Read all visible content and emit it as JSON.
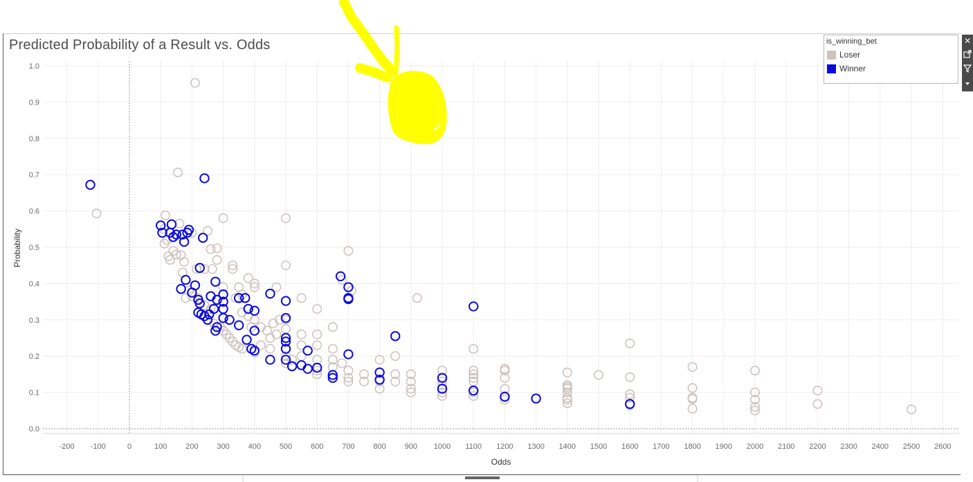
{
  "title": "Predicted Probability of a Result vs. Odds",
  "legend": {
    "title": "is_winning_bet",
    "items": [
      {
        "label": "Loser",
        "color": "#cdc3be"
      },
      {
        "label": "Winner",
        "color": "#0b0bdc"
      }
    ]
  },
  "toolbar": {
    "icons": [
      "close-icon",
      "popout-icon",
      "filter-icon",
      "dropdown-icon"
    ]
  },
  "annotation": {
    "color": "#ffff00",
    "description": "yellow hand-drawn scribble"
  },
  "chart_data": {
    "type": "scatter",
    "xlabel": "Odds",
    "ylabel": "Probability",
    "xlim": [
      -200,
      2600
    ],
    "ylim": [
      0.0,
      1.0
    ],
    "xticks": [
      -200,
      -100,
      0,
      100,
      200,
      300,
      400,
      500,
      600,
      700,
      800,
      900,
      1000,
      1100,
      1200,
      1300,
      1400,
      1500,
      1600,
      1700,
      1800,
      1900,
      2000,
      2100,
      2200,
      2300,
      2400,
      2500,
      2600
    ],
    "yticks": [
      0.0,
      0.1,
      0.2,
      0.3,
      0.4,
      0.5,
      0.6,
      0.7,
      0.8,
      0.9,
      1.0
    ],
    "grid": true,
    "legend_position": "top-right",
    "series": [
      {
        "name": "Loser",
        "color": "#cdc3be",
        "points": [
          [
            -105,
            0.593
          ],
          [
            210,
            0.953
          ],
          [
            155,
            0.706
          ],
          [
            115,
            0.588
          ],
          [
            110,
            0.55
          ],
          [
            120,
            0.52
          ],
          [
            112,
            0.51
          ],
          [
            125,
            0.475
          ],
          [
            130,
            0.465
          ],
          [
            140,
            0.49
          ],
          [
            150,
            0.48
          ],
          [
            165,
            0.478
          ],
          [
            160,
            0.565
          ],
          [
            175,
            0.46
          ],
          [
            200,
            0.54
          ],
          [
            250,
            0.545
          ],
          [
            300,
            0.58
          ],
          [
            260,
            0.495
          ],
          [
            280,
            0.497
          ],
          [
            265,
            0.44
          ],
          [
            280,
            0.465
          ],
          [
            240,
            0.44
          ],
          [
            215,
            0.44
          ],
          [
            170,
            0.43
          ],
          [
            180,
            0.41
          ],
          [
            190,
            0.38
          ],
          [
            200,
            0.365
          ],
          [
            180,
            0.36
          ],
          [
            220,
            0.36
          ],
          [
            240,
            0.34
          ],
          [
            260,
            0.33
          ],
          [
            250,
            0.3
          ],
          [
            270,
            0.29
          ],
          [
            290,
            0.28
          ],
          [
            300,
            0.27
          ],
          [
            310,
            0.26
          ],
          [
            320,
            0.25
          ],
          [
            330,
            0.24
          ],
          [
            340,
            0.23
          ],
          [
            350,
            0.225
          ],
          [
            360,
            0.22
          ],
          [
            300,
            0.39
          ],
          [
            330,
            0.44
          ],
          [
            330,
            0.45
          ],
          [
            350,
            0.39
          ],
          [
            360,
            0.37
          ],
          [
            380,
            0.415
          ],
          [
            400,
            0.39
          ],
          [
            400,
            0.4
          ],
          [
            340,
            0.36
          ],
          [
            360,
            0.32
          ],
          [
            380,
            0.31
          ],
          [
            400,
            0.3
          ],
          [
            390,
            0.28
          ],
          [
            420,
            0.28
          ],
          [
            440,
            0.27
          ],
          [
            460,
            0.29
          ],
          [
            450,
            0.25
          ],
          [
            470,
            0.26
          ],
          [
            480,
            0.3
          ],
          [
            500,
            0.3
          ],
          [
            470,
            0.39
          ],
          [
            500,
            0.45
          ],
          [
            500,
            0.58
          ],
          [
            550,
            0.36
          ],
          [
            600,
            0.33
          ],
          [
            650,
            0.28
          ],
          [
            700,
            0.49
          ],
          [
            680,
            0.41
          ],
          [
            710,
            0.38
          ],
          [
            500,
            0.275
          ],
          [
            500,
            0.2
          ],
          [
            450,
            0.22
          ],
          [
            420,
            0.23
          ],
          [
            400,
            0.21
          ],
          [
            500,
            0.18
          ],
          [
            520,
            0.19
          ],
          [
            550,
            0.2
          ],
          [
            550,
            0.23
          ],
          [
            550,
            0.26
          ],
          [
            600,
            0.26
          ],
          [
            600,
            0.23
          ],
          [
            600,
            0.19
          ],
          [
            600,
            0.16
          ],
          [
            600,
            0.15
          ],
          [
            650,
            0.22
          ],
          [
            650,
            0.19
          ],
          [
            650,
            0.17
          ],
          [
            680,
            0.18
          ],
          [
            700,
            0.16
          ],
          [
            700,
            0.14
          ],
          [
            700,
            0.13
          ],
          [
            750,
            0.15
          ],
          [
            750,
            0.13
          ],
          [
            800,
            0.19
          ],
          [
            800,
            0.11
          ],
          [
            800,
            0.13
          ],
          [
            850,
            0.2
          ],
          [
            850,
            0.15
          ],
          [
            850,
            0.13
          ],
          [
            900,
            0.15
          ],
          [
            900,
            0.13
          ],
          [
            900,
            0.11
          ],
          [
            900,
            0.1
          ],
          [
            920,
            0.36
          ],
          [
            1000,
            0.16
          ],
          [
            1000,
            0.13
          ],
          [
            1000,
            0.12
          ],
          [
            1000,
            0.1
          ],
          [
            1000,
            0.09
          ],
          [
            1100,
            0.22
          ],
          [
            1100,
            0.16
          ],
          [
            1100,
            0.15
          ],
          [
            1100,
            0.14
          ],
          [
            1100,
            0.13
          ],
          [
            1100,
            0.1
          ],
          [
            1100,
            0.09
          ],
          [
            1200,
            0.165
          ],
          [
            1200,
            0.16
          ],
          [
            1200,
            0.14
          ],
          [
            1200,
            0.11
          ],
          [
            1200,
            0.09
          ],
          [
            1200,
            0.08
          ],
          [
            1400,
            0.155
          ],
          [
            1400,
            0.12
          ],
          [
            1400,
            0.115
          ],
          [
            1400,
            0.11
          ],
          [
            1400,
            0.1
          ],
          [
            1400,
            0.085
          ],
          [
            1400,
            0.08
          ],
          [
            1400,
            0.07
          ],
          [
            1500,
            0.148
          ],
          [
            1600,
            0.235
          ],
          [
            1600,
            0.142
          ],
          [
            1600,
            0.095
          ],
          [
            1600,
            0.085
          ],
          [
            1600,
            0.065
          ],
          [
            1800,
            0.17
          ],
          [
            1800,
            0.112
          ],
          [
            1800,
            0.085
          ],
          [
            1800,
            0.082
          ],
          [
            1800,
            0.055
          ],
          [
            2000,
            0.16
          ],
          [
            2000,
            0.1
          ],
          [
            2000,
            0.08
          ],
          [
            2000,
            0.06
          ],
          [
            2000,
            0.05
          ],
          [
            2200,
            0.105
          ],
          [
            2200,
            0.068
          ],
          [
            2500,
            0.053
          ]
        ]
      },
      {
        "name": "Winner",
        "color": "#0b0bdc",
        "points": [
          [
            -125,
            0.672
          ],
          [
            240,
            0.69
          ],
          [
            100,
            0.56
          ],
          [
            105,
            0.54
          ],
          [
            135,
            0.563
          ],
          [
            130,
            0.54
          ],
          [
            140,
            0.528
          ],
          [
            150,
            0.535
          ],
          [
            170,
            0.535
          ],
          [
            185,
            0.54
          ],
          [
            190,
            0.548
          ],
          [
            175,
            0.515
          ],
          [
            235,
            0.526
          ],
          [
            225,
            0.443
          ],
          [
            165,
            0.385
          ],
          [
            180,
            0.41
          ],
          [
            200,
            0.375
          ],
          [
            210,
            0.395
          ],
          [
            220,
            0.355
          ],
          [
            225,
            0.345
          ],
          [
            220,
            0.32
          ],
          [
            230,
            0.315
          ],
          [
            240,
            0.31
          ],
          [
            250,
            0.3
          ],
          [
            255,
            0.315
          ],
          [
            260,
            0.365
          ],
          [
            270,
            0.33
          ],
          [
            275,
            0.27
          ],
          [
            280,
            0.28
          ],
          [
            280,
            0.355
          ],
          [
            275,
            0.405
          ],
          [
            300,
            0.37
          ],
          [
            300,
            0.35
          ],
          [
            300,
            0.33
          ],
          [
            300,
            0.305
          ],
          [
            320,
            0.3
          ],
          [
            350,
            0.36
          ],
          [
            370,
            0.36
          ],
          [
            350,
            0.285
          ],
          [
            380,
            0.33
          ],
          [
            400,
            0.325
          ],
          [
            400,
            0.27
          ],
          [
            375,
            0.245
          ],
          [
            390,
            0.22
          ],
          [
            400,
            0.215
          ],
          [
            450,
            0.372
          ],
          [
            500,
            0.352
          ],
          [
            500,
            0.305
          ],
          [
            500,
            0.25
          ],
          [
            500,
            0.24
          ],
          [
            500,
            0.22
          ],
          [
            500,
            0.19
          ],
          [
            450,
            0.19
          ],
          [
            520,
            0.172
          ],
          [
            550,
            0.175
          ],
          [
            570,
            0.215
          ],
          [
            570,
            0.165
          ],
          [
            600,
            0.168
          ],
          [
            650,
            0.148
          ],
          [
            650,
            0.14
          ],
          [
            675,
            0.42
          ],
          [
            700,
            0.39
          ],
          [
            700,
            0.36
          ],
          [
            700,
            0.357
          ],
          [
            700,
            0.205
          ],
          [
            800,
            0.155
          ],
          [
            800,
            0.135
          ],
          [
            850,
            0.255
          ],
          [
            1000,
            0.14
          ],
          [
            1000,
            0.11
          ],
          [
            1100,
            0.337
          ],
          [
            1100,
            0.105
          ],
          [
            1200,
            0.088
          ],
          [
            1300,
            0.083
          ],
          [
            1600,
            0.068
          ]
        ]
      }
    ]
  }
}
